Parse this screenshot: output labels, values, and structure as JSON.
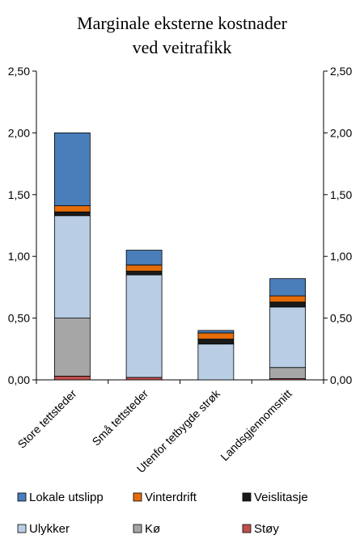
{
  "chart_data": {
    "type": "bar",
    "stacked": true,
    "title_lines": [
      "Marginale eksterne kostnader",
      "ved veitrafikk"
    ],
    "categories": [
      "Store tettsteder",
      "Små tettsteder",
      "Utenfor tetbygde strøk",
      "Landsgjennomsnitt"
    ],
    "ylim": [
      0,
      2.5
    ],
    "yticks": [
      "0,00",
      "0,50",
      "1,00",
      "1,50",
      "2,00",
      "2,50"
    ],
    "ytick_values": [
      0,
      0.5,
      1.0,
      1.5,
      2.0,
      2.5
    ],
    "secondary_y_axis": true,
    "grid": false,
    "legend_position": "bottom",
    "series": [
      {
        "name": "Støy",
        "color": "#c0504d",
        "values": [
          0.03,
          0.02,
          0.0,
          0.01
        ]
      },
      {
        "name": "Kø",
        "color": "#a6a6a6",
        "values": [
          0.47,
          0.0,
          0.0,
          0.09
        ]
      },
      {
        "name": "Ulykker",
        "color": "#b9cde5",
        "values": [
          0.83,
          0.83,
          0.29,
          0.49
        ]
      },
      {
        "name": "Veislitasje",
        "color": "#1a1a1a",
        "values": [
          0.03,
          0.03,
          0.04,
          0.04
        ]
      },
      {
        "name": "Vinterdrift",
        "color": "#e46c0a",
        "values": [
          0.05,
          0.05,
          0.05,
          0.05
        ]
      },
      {
        "name": "Lokale utslipp",
        "color": "#4a7ebb",
        "values": [
          0.59,
          0.12,
          0.02,
          0.14
        ]
      }
    ],
    "legend_order": [
      "Lokale utslipp",
      "Vinterdrift",
      "Veislitasje",
      "Ulykker",
      "Kø",
      "Støy"
    ]
  }
}
